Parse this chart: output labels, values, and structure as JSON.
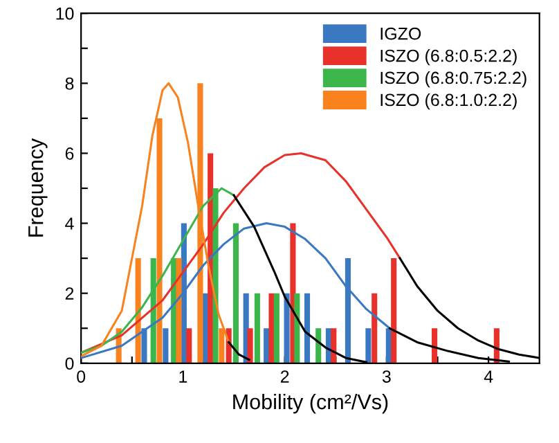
{
  "chart_data": {
    "type": "bar",
    "xlabel": "Mobility (cm²/Vs)",
    "ylabel": "Frequency",
    "xlim": [
      0,
      4.5
    ],
    "xticks": [
      0,
      {
        "value": 0.5,
        "label": null
      },
      1,
      {
        "value": 1.5,
        "label": null
      },
      2,
      {
        "value": 2.5,
        "label": null
      },
      3,
      {
        "value": 3.5,
        "label": null
      },
      4
    ],
    "ylim": [
      0,
      10
    ],
    "yticks": [
      0,
      {
        "value": 1,
        "label": null
      },
      2,
      {
        "value": 3,
        "label": null
      },
      4,
      {
        "value": 5,
        "label": null
      },
      6,
      {
        "value": 7,
        "label": null
      },
      8,
      {
        "value": 9,
        "label": null
      },
      10
    ],
    "grid": false,
    "legend": "top right",
    "series": [
      {
        "name": "IGZO",
        "color": "#3a78c2",
        "x": [
          0.62,
          0.83,
          1.01,
          1.22,
          1.62,
          1.82,
          2.02,
          2.22,
          2.43,
          2.62,
          2.82,
          3.02
        ],
        "values": [
          1,
          1,
          4,
          2,
          2,
          1,
          2,
          2,
          1,
          3,
          1,
          1
        ]
      },
      {
        "name": "ISZO (6.8:0.5:2.2)",
        "color": "#e8312a",
        "x": [
          1.06,
          1.27,
          1.45,
          1.66,
          1.87,
          2.08,
          2.48,
          2.88,
          3.07,
          3.47,
          4.08
        ],
        "values": [
          1,
          6,
          1,
          1,
          2,
          4,
          1,
          2,
          3,
          1,
          1
        ]
      },
      {
        "name": "ISZO (6.8:0.75:2.2)",
        "color": "#3cb54a",
        "x": [
          0.71,
          0.91,
          1.32,
          1.52,
          1.73,
          1.92,
          2.12,
          2.33
        ],
        "values": [
          3,
          3,
          5,
          4,
          2,
          2,
          2,
          1
        ]
      },
      {
        "name": "ISZO (6.8:1.0:2.2)",
        "color": "#f7821e",
        "x": [
          0.37,
          0.56,
          0.77,
          0.96,
          1.17,
          1.38
        ],
        "values": [
          1,
          3,
          7,
          3,
          8,
          1
        ]
      },
      {
        "type": "line",
        "color": "#3a78c2",
        "x": [
          0,
          0.4,
          0.8,
          1.0,
          1.2,
          1.4,
          1.6,
          1.82,
          2.0,
          2.2,
          2.4,
          2.6,
          2.8,
          3.03
        ],
        "values": [
          0.15,
          0.5,
          1.3,
          2.0,
          2.8,
          3.4,
          3.85,
          4,
          3.9,
          3.55,
          3.0,
          2.2,
          1.55,
          1.0
        ]
      },
      {
        "type": "line",
        "color": "#000000",
        "x": [
          3.03,
          3.3,
          3.6,
          3.9,
          4.2
        ],
        "values": [
          1.0,
          0.6,
          0.35,
          0.15,
          0.05
        ]
      },
      {
        "type": "line",
        "color": "#e8312a",
        "x": [
          0,
          0.4,
          0.8,
          1.0,
          1.2,
          1.4,
          1.6,
          1.8,
          2.0,
          2.16,
          2.4,
          2.6,
          2.8,
          3.0,
          3.13
        ],
        "values": [
          0.3,
          0.8,
          1.8,
          2.6,
          3.4,
          4.3,
          5.0,
          5.6,
          5.95,
          6,
          5.8,
          5.2,
          4.4,
          3.6,
          3.0
        ]
      },
      {
        "type": "line",
        "color": "#000000",
        "x": [
          3.13,
          3.3,
          3.5,
          3.7,
          3.9,
          4.1,
          4.3,
          4.5
        ],
        "values": [
          3.0,
          2.2,
          1.5,
          1.0,
          0.65,
          0.4,
          0.25,
          0.15
        ]
      },
      {
        "type": "line",
        "color": "#3cb54a",
        "x": [
          0,
          0.2,
          0.4,
          0.6,
          0.8,
          1.0,
          1.2,
          1.38,
          1.5
        ],
        "values": [
          0.3,
          0.5,
          0.9,
          1.6,
          2.5,
          3.5,
          4.5,
          5,
          4.8
        ]
      },
      {
        "type": "line",
        "color": "#000000",
        "x": [
          1.5,
          1.7,
          1.9,
          2.0,
          2.2,
          2.4,
          2.6,
          2.8
        ],
        "values": [
          4.8,
          3.9,
          2.6,
          1.9,
          0.9,
          0.45,
          0.15,
          0.03
        ]
      },
      {
        "type": "line",
        "color": "#f7821e",
        "x": [
          0,
          0.2,
          0.4,
          0.6,
          0.7,
          0.8,
          0.86,
          0.95,
          1.05,
          1.15,
          1.25,
          1.35,
          1.45
        ],
        "values": [
          0.2,
          0.5,
          1.5,
          4.5,
          6.5,
          7.8,
          8,
          7.6,
          6.3,
          4.5,
          2.8,
          1.4,
          0.6
        ]
      },
      {
        "type": "line",
        "color": "#000000",
        "x": [
          1.45,
          1.55,
          1.65
        ],
        "values": [
          0.6,
          0.25,
          0.1
        ]
      }
    ]
  }
}
